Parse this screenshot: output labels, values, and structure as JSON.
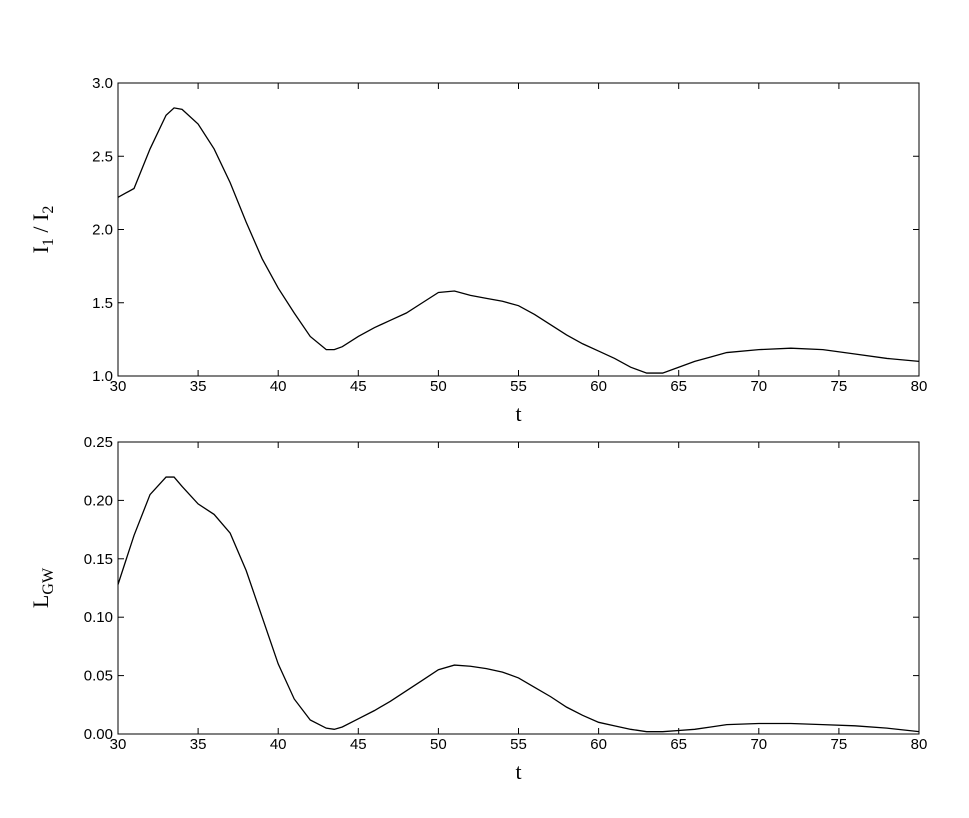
{
  "chart_data": [
    {
      "type": "line",
      "xlabel": "t",
      "ylabel": [
        {
          "text": "I"
        },
        {
          "sub": "1"
        },
        {
          "text": " / I"
        },
        {
          "sub": "2"
        }
      ],
      "x": [
        30,
        31,
        32,
        33,
        33.5,
        34,
        35,
        36,
        37,
        38,
        39,
        40,
        41,
        42,
        43,
        43.5,
        44,
        45,
        46,
        47,
        48,
        49,
        50,
        51,
        52,
        53,
        54,
        55,
        56,
        57,
        58,
        59,
        60,
        61,
        62,
        63,
        64,
        65,
        66,
        67,
        68,
        70,
        72,
        74,
        76,
        78,
        80
      ],
      "series": [
        {
          "color": "#000000",
          "values": [
            2.22,
            2.28,
            2.55,
            2.78,
            2.83,
            2.82,
            2.72,
            2.55,
            2.32,
            2.05,
            1.8,
            1.6,
            1.43,
            1.27,
            1.18,
            1.18,
            1.2,
            1.27,
            1.33,
            1.38,
            1.43,
            1.5,
            1.57,
            1.58,
            1.55,
            1.53,
            1.51,
            1.48,
            1.42,
            1.35,
            1.28,
            1.22,
            1.17,
            1.12,
            1.06,
            1.02,
            1.02,
            1.06,
            1.1,
            1.13,
            1.16,
            1.18,
            1.19,
            1.18,
            1.15,
            1.12,
            1.1
          ]
        }
      ],
      "xlim": [
        30,
        80
      ],
      "xticks": [
        30,
        35,
        40,
        45,
        50,
        55,
        60,
        65,
        70,
        75,
        80
      ],
      "ylim": [
        1,
        3
      ],
      "yticks": [
        {
          "value": 1,
          "label": "1.0"
        },
        1.5,
        {
          "value": 2,
          "label": "2.0"
        },
        2.5,
        {
          "value": 3,
          "label": "3.0"
        }
      ]
    },
    {
      "type": "line",
      "xlabel": "t",
      "ylabel": [
        {
          "text": "L"
        },
        {
          "sub": "GW"
        }
      ],
      "x": [
        30,
        31,
        32,
        33,
        33.5,
        34,
        35,
        36,
        37,
        38,
        39,
        40,
        41,
        42,
        43,
        43.5,
        44,
        45,
        46,
        47,
        48,
        49,
        50,
        51,
        52,
        53,
        54,
        55,
        56,
        57,
        58,
        59,
        60,
        61,
        62,
        63,
        64,
        65,
        66,
        67,
        68,
        70,
        72,
        74,
        76,
        78,
        80
      ],
      "series": [
        {
          "color": "#000000",
          "values": [
            0.128,
            0.17,
            0.205,
            0.22,
            0.22,
            0.212,
            0.197,
            0.188,
            0.172,
            0.14,
            0.1,
            0.06,
            0.03,
            0.012,
            0.005,
            0.004,
            0.006,
            0.013,
            0.02,
            0.028,
            0.037,
            0.046,
            0.055,
            0.059,
            0.058,
            0.056,
            0.053,
            0.048,
            0.04,
            0.032,
            0.023,
            0.016,
            0.01,
            0.007,
            0.004,
            0.002,
            0.002,
            0.003,
            0.004,
            0.006,
            0.008,
            0.009,
            0.009,
            0.008,
            0.007,
            0.005,
            0.002
          ]
        }
      ],
      "xlim": [
        30,
        80
      ],
      "xticks": [
        30,
        35,
        40,
        45,
        50,
        55,
        60,
        65,
        70,
        75,
        80
      ],
      "ylim": [
        0,
        0.25
      ],
      "yticks": [
        {
          "value": 0,
          "label": "0.00"
        },
        {
          "value": 0.05,
          "label": "0.05"
        },
        {
          "value": 0.1,
          "label": "0.10"
        },
        {
          "value": 0.15,
          "label": "0.15"
        },
        {
          "value": 0.2,
          "label": "0.20"
        },
        {
          "value": 0.25,
          "label": "0.25"
        }
      ]
    }
  ]
}
